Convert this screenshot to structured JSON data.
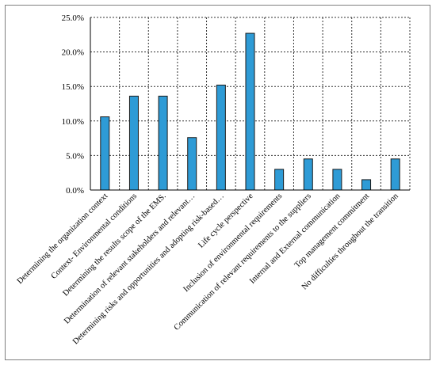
{
  "chart_data": {
    "type": "bar",
    "categories": [
      "Determining the organization context",
      "Context- Environmental conditions",
      "Determining the results scope of the EMS.",
      "Determination of relevant stakeholders and relevant…",
      "Determining risks and opportunities and adopting risk-based…",
      "Life cycle perspective",
      "Inclusion of environmental requirements",
      "Communication of relevant requirements to the suppliers",
      "Internal and External communication",
      "Top management commitment",
      "No difficulties throughout the transition"
    ],
    "values": [
      10.6,
      13.6,
      13.6,
      7.6,
      15.2,
      22.7,
      3.0,
      4.5,
      3.0,
      1.5,
      4.5
    ],
    "yticks": [
      "0.0%",
      "5.0%",
      "10.0%",
      "15.0%",
      "20.0%",
      "25.0%"
    ],
    "ylim": [
      0,
      25
    ],
    "grid": true,
    "title": "",
    "xlabel": "",
    "ylabel": "",
    "colors": {
      "bar": "#2e9bd6",
      "bar_edge": "#1a1a1a",
      "grid": "#333333"
    }
  }
}
